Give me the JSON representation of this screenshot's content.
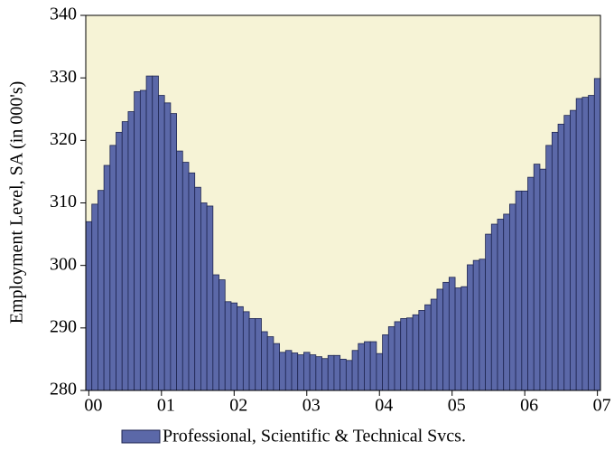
{
  "chart_data": {
    "type": "bar",
    "y_label": "Employment Level, SA (in 000's)",
    "categories": [
      "00",
      null,
      null,
      null,
      null,
      null,
      null,
      null,
      null,
      null,
      null,
      null,
      "01",
      null,
      null,
      null,
      null,
      null,
      null,
      null,
      null,
      null,
      null,
      null,
      "02",
      null,
      null,
      null,
      null,
      null,
      null,
      null,
      null,
      null,
      null,
      null,
      "03",
      null,
      null,
      null,
      null,
      null,
      null,
      null,
      null,
      null,
      null,
      null,
      "04",
      null,
      null,
      null,
      null,
      null,
      null,
      null,
      null,
      null,
      null,
      null,
      "05",
      null,
      null,
      null,
      null,
      null,
      null,
      null,
      null,
      null,
      null,
      null,
      "06",
      null,
      null,
      null,
      null,
      null,
      null,
      null,
      null,
      null,
      null,
      null,
      "07"
    ],
    "series": [
      {
        "name": "Professional, Scientific & Technical Svcs.",
        "color": "#5b68a8",
        "values": [
          307,
          309.8,
          312,
          316,
          319.2,
          321.3,
          323,
          324.6,
          327.8,
          328,
          330.3,
          330.3,
          327.2,
          326,
          324.3,
          318.3,
          316.5,
          314.8,
          312.5,
          310,
          309.5,
          298.5,
          297.7,
          294.2,
          294,
          293.4,
          292.6,
          291.5,
          291.5,
          289.4,
          288.6,
          287.5,
          286.1,
          286.4,
          286,
          285.7,
          286.1,
          285.7,
          285.4,
          285.1,
          285.6,
          285.6,
          285,
          284.8,
          286.4,
          287.5,
          287.8,
          287.8,
          285.9,
          288.9,
          290.2,
          291,
          291.5,
          291.6,
          292.1,
          292.8,
          293.7,
          294.6,
          296.2,
          297.3,
          298.1,
          296.4,
          296.6,
          300.1,
          300.8,
          301,
          305,
          306.6,
          307.4,
          308.2,
          309.8,
          311.9,
          311.9,
          314.1,
          316.2,
          315.4,
          319.2,
          321.3,
          322.6,
          324,
          324.8,
          326.7,
          326.9,
          327.2,
          329.9
        ]
      }
    ],
    "ylim": [
      280,
      340
    ],
    "yticks": [
      280,
      290,
      300,
      310,
      320,
      330,
      340
    ],
    "plot_background": "#f6f3d6",
    "legend": "bottom"
  }
}
